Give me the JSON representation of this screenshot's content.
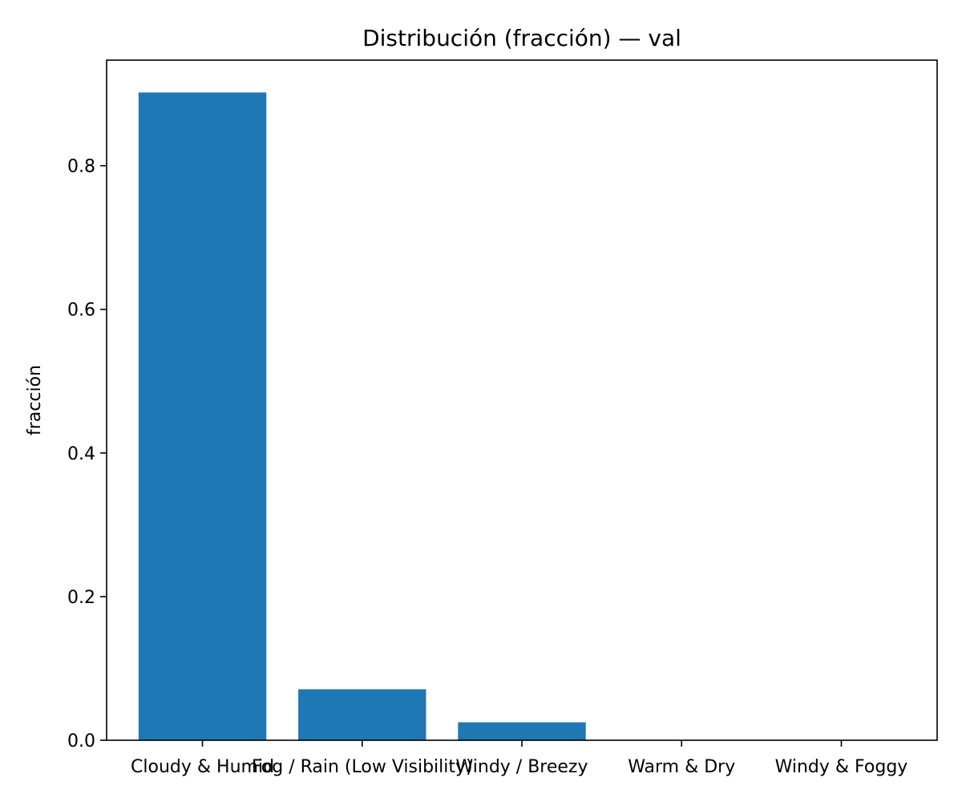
{
  "chart_data": {
    "type": "bar",
    "title": "Distribución (fracción) — val",
    "xlabel": "",
    "ylabel": "fracción",
    "categories": [
      "Cloudy & Humid",
      "Fog / Rain (Low Visibility)",
      "Windy / Breezy",
      "Warm & Dry",
      "Windy & Foggy"
    ],
    "values": [
      0.902,
      0.071,
      0.025,
      0.0,
      0.0
    ],
    "ylim": [
      0,
      0.947
    ],
    "yticks": [
      0.0,
      0.2,
      0.4,
      0.6,
      0.8
    ],
    "ytick_labels": [
      "0.0",
      "0.2",
      "0.4",
      "0.6",
      "0.8"
    ],
    "bar_color": "#1f77b4",
    "grid": false
  }
}
